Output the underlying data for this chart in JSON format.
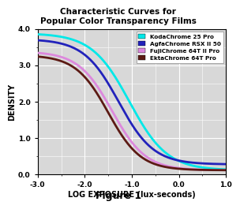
{
  "title": "Characteristic Curves for\nPopular Color Transparency Films",
  "xlabel": "LOG EXPOSURE (lux-seconds)",
  "ylabel": "DENSITY",
  "caption": "Figure 1",
  "xlim": [
    -3.0,
    1.0
  ],
  "ylim": [
    0.0,
    4.0
  ],
  "xticks": [
    -3.0,
    -2.0,
    -1.0,
    0.0,
    1.0
  ],
  "yticks": [
    0.0,
    1.0,
    2.0,
    3.0,
    4.0
  ],
  "background_color": "#d8d8d8",
  "grid_color": "#ffffff",
  "series": [
    {
      "name": "KodaChrome 25 Pro",
      "color": "#00e8e8",
      "lw": 2.0,
      "D_max": 3.88,
      "D_min": 0.12,
      "inflection": -1.05,
      "slope": 2.5
    },
    {
      "name": "AgfaChrome RSX II 50",
      "color": "#2222bb",
      "lw": 2.0,
      "D_max": 3.72,
      "D_min": 0.28,
      "inflection": -1.28,
      "slope": 2.7
    },
    {
      "name": "FujiChrome 64T II Pro",
      "color": "#dd88dd",
      "lw": 2.0,
      "D_max": 3.38,
      "D_min": 0.12,
      "inflection": -1.42,
      "slope": 2.8
    },
    {
      "name": "EktaChrome 64T Pro",
      "color": "#5c1a14",
      "lw": 2.0,
      "D_max": 3.28,
      "D_min": 0.12,
      "inflection": -1.5,
      "slope": 2.9
    }
  ]
}
